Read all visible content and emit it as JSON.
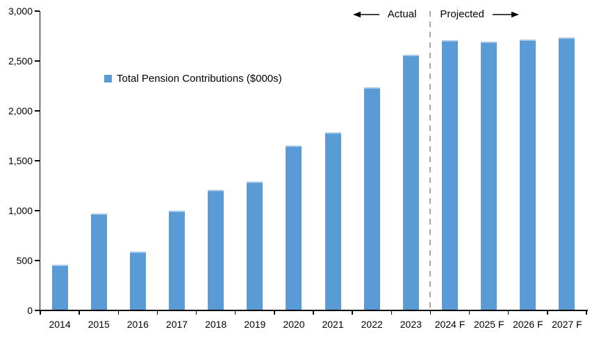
{
  "chart_data": {
    "type": "bar",
    "title": "",
    "legend_label": "Total Pension Contributions ($000s)",
    "categories": [
      "2014",
      "2015",
      "2016",
      "2017",
      "2018",
      "2019",
      "2020",
      "2021",
      "2022",
      "2023",
      "2024 F",
      "2025 F",
      "2026 F",
      "2027 F"
    ],
    "values": [
      455,
      970,
      590,
      1000,
      1210,
      1295,
      1650,
      1785,
      2235,
      2560,
      2710,
      2695,
      2715,
      2735
    ],
    "ylim": [
      0,
      3000
    ],
    "ytick_step": 500,
    "ytick_labels": [
      "0",
      "500",
      "1,000",
      "1,500",
      "2,000",
      "2,500",
      "3,000"
    ],
    "grid": false,
    "legend_position": "inside-upper-left",
    "bar_color": "#5B9BD5",
    "bar_top_edge_color": "#A9CBE9",
    "axis_color": "#000000",
    "text_color": "#000000",
    "divider": {
      "after_category": "2023",
      "style": "dashed",
      "color": "#A6A6A6"
    },
    "annotations": {
      "left_label": "Actual",
      "right_label": "Projected",
      "arrow_color": "#000000"
    }
  }
}
